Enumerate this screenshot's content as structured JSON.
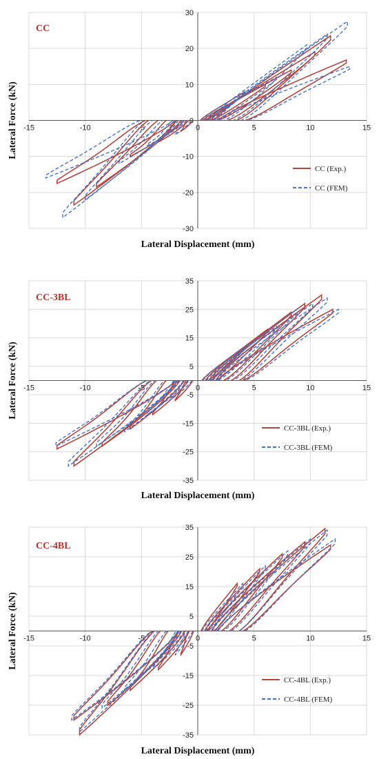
{
  "chart_data": [
    {
      "type": "line",
      "panel_label": "CC",
      "xlabel": "Lateral Displacement (mm)",
      "ylabel": "Lateral Force (kN)",
      "xlim": [
        -15,
        15
      ],
      "ylim": [
        -30,
        30
      ],
      "xticks": [
        -15,
        -10,
        -5,
        0,
        5,
        10,
        15
      ],
      "yticks": [
        -30,
        -20,
        -10,
        0,
        10,
        20,
        30
      ],
      "grid": true,
      "legend_position": "bottom-right",
      "series": [
        {
          "name": "CC (Exp.)",
          "color": "#b5443c",
          "dash": "solid",
          "cycles": [
            {
              "x": [
                1.5,
                4.2
              ],
              "y": [
                4.0,
                8.0
              ]
            },
            {
              "x": [
                3.0,
                6.0
              ],
              "y": [
                6.0,
                10.0
              ]
            },
            {
              "x": [
                5.0,
                8.3
              ],
              "y": [
                8.0,
                14.0
              ]
            },
            {
              "x": [
                7.5,
                10.4
              ],
              "y": [
                12.0,
                19.0
              ]
            },
            {
              "x": [
                9.8,
                11.8
              ],
              "y": [
                16.0,
                23.5
              ]
            },
            {
              "x": [
                12.0,
                13.2
              ],
              "y": [
                13.0,
                16.8
              ]
            },
            {
              "x": [
                -3.0,
                -1.5
              ],
              "y": [
                -6.0,
                -3.0
              ]
            },
            {
              "x": [
                -5.5,
                -3.5
              ],
              "y": [
                -9.0,
                -6.0
              ]
            },
            {
              "x": [
                -8.0,
                -6.0
              ],
              "y": [
                -13.0,
                -10.0
              ]
            },
            {
              "x": [
                -10.0,
                -9.0
              ],
              "y": [
                -16.0,
                -18.5
              ]
            },
            {
              "x": [
                -12.5,
                -11.0
              ],
              "y": [
                -21.0,
                -23.5
              ]
            },
            {
              "x": [
                -13.3,
                -12.5
              ],
              "y": [
                -17.0,
                -17.5
              ]
            }
          ]
        },
        {
          "name": "CC (FEM)",
          "color": "#4472c4",
          "dash": "dashed",
          "cycles": [
            {
              "x": [
                2.0,
                4.5
              ],
              "y": [
                5.0,
                8.5
              ]
            },
            {
              "x": [
                4.0,
                7.0
              ],
              "y": [
                7.0,
                12.0
              ]
            },
            {
              "x": [
                6.5,
                9.7
              ],
              "y": [
                11.0,
                21.0
              ]
            },
            {
              "x": [
                9.0,
                11.5
              ],
              "y": [
                15.0,
                24.0
              ]
            },
            {
              "x": [
                11.0,
                13.3
              ],
              "y": [
                20.0,
                27.5
              ]
            },
            {
              "x": [
                12.5,
                13.5
              ],
              "y": [
                13.0,
                15.0
              ]
            },
            {
              "x": [
                -4.0,
                -2.0
              ],
              "y": [
                -7.0,
                -4.0
              ]
            },
            {
              "x": [
                -6.5,
                -4.5
              ],
              "y": [
                -10.0,
                -7.0
              ]
            },
            {
              "x": [
                -9.0,
                -7.0
              ],
              "y": [
                -14.0,
                -12.0
              ]
            },
            {
              "x": [
                -11.5,
                -10.0
              ],
              "y": [
                -19.0,
                -22.0
              ]
            },
            {
              "x": [
                -13.5,
                -12.0
              ],
              "y": [
                -24.0,
                -27.0
              ]
            },
            {
              "x": [
                -14.5,
                -13.5
              ],
              "y": [
                -14.0,
                -16.0
              ]
            }
          ]
        }
      ]
    },
    {
      "type": "line",
      "panel_label": "CC-3BL",
      "xlabel": "Lateral Displacement (mm)",
      "ylabel": "Lateral Force (kN)",
      "xlim": [
        -15,
        15
      ],
      "ylim": [
        -35,
        35
      ],
      "xticks": [
        -15,
        -10,
        -5,
        0,
        5,
        10,
        15
      ],
      "yticks": [
        -35,
        -25,
        -15,
        -5,
        5,
        15,
        25,
        35
      ],
      "grid": true,
      "legend_position": "bottom-right",
      "series": [
        {
          "name": "CC-3BL (Exp.)",
          "color": "#b5443c",
          "dash": "solid",
          "cycles": [
            {
              "x": [
                2.5,
                4.2
              ],
              "y": [
                8.0,
                12.0
              ]
            },
            {
              "x": [
                4.5,
                6.2
              ],
              "y": [
                12.0,
                18.0
              ]
            },
            {
              "x": [
                6.5,
                8.3
              ],
              "y": [
                17.0,
                24.0
              ]
            },
            {
              "x": [
                8.5,
                9.5
              ],
              "y": [
                22.0,
                27.0
              ]
            },
            {
              "x": [
                10.5,
                11.0
              ],
              "y": [
                26.0,
                30.0
              ]
            },
            {
              "x": [
                11.5,
                12.0
              ],
              "y": [
                22.0,
                25.0
              ]
            },
            {
              "x": [
                -3.0,
                -2.0
              ],
              "y": [
                -9.0,
                -7.0
              ]
            },
            {
              "x": [
                -5.5,
                -4.0
              ],
              "y": [
                -14.0,
                -12.0
              ]
            },
            {
              "x": [
                -8.0,
                -6.0
              ],
              "y": [
                -20.0,
                -17.0
              ]
            },
            {
              "x": [
                -10.5,
                -8.5
              ],
              "y": [
                -26.0,
                -23.0
              ]
            },
            {
              "x": [
                -11.8,
                -11.0
              ],
              "y": [
                -29.0,
                -30.0
              ]
            },
            {
              "x": [
                -13.0,
                -12.5
              ],
              "y": [
                -23.0,
                -24.0
              ]
            }
          ]
        },
        {
          "name": "CC-3BL (FEM)",
          "color": "#4472c4",
          "dash": "dashed",
          "cycles": [
            {
              "x": [
                3.0,
                4.5
              ],
              "y": [
                8.0,
                13.0
              ]
            },
            {
              "x": [
                5.0,
                7.0
              ],
              "y": [
                13.0,
                19.0
              ]
            },
            {
              "x": [
                7.0,
                8.8
              ],
              "y": [
                18.0,
                25.0
              ]
            },
            {
              "x": [
                9.0,
                10.2
              ],
              "y": [
                23.0,
                27.0
              ]
            },
            {
              "x": [
                11.0,
                11.5
              ],
              "y": [
                25.0,
                29.0
              ]
            },
            {
              "x": [
                12.0,
                12.5
              ],
              "y": [
                22.0,
                25.0
              ]
            },
            {
              "x": [
                -3.5,
                -2.5
              ],
              "y": [
                -9.0,
                -7.0
              ]
            },
            {
              "x": [
                -6.0,
                -4.5
              ],
              "y": [
                -15.0,
                -12.0
              ]
            },
            {
              "x": [
                -8.5,
                -6.5
              ],
              "y": [
                -21.0,
                -18.0
              ]
            },
            {
              "x": [
                -11.0,
                -9.0
              ],
              "y": [
                -27.0,
                -23.0
              ]
            },
            {
              "x": [
                -12.0,
                -11.5
              ],
              "y": [
                -28.0,
                -30.0
              ]
            },
            {
              "x": [
                -13.0,
                -12.6
              ],
              "y": [
                -22.0,
                -23.0
              ]
            }
          ]
        }
      ]
    },
    {
      "type": "line",
      "panel_label": "CC-4BL",
      "xlabel": "Lateral Displacement (mm)",
      "ylabel": "Lateral Force (kN)",
      "xlim": [
        -15,
        15
      ],
      "ylim": [
        -35,
        35
      ],
      "xticks": [
        -15,
        -10,
        -5,
        0,
        5,
        10,
        15
      ],
      "yticks": [
        -35,
        -25,
        -15,
        -5,
        5,
        15,
        25,
        35
      ],
      "grid": true,
      "legend_position": "bottom-right",
      "series": [
        {
          "name": "CC-4BL (Exp.)",
          "color": "#b5443c",
          "dash": "solid",
          "cycles": [
            {
              "x": [
                2.0,
                3.5
              ],
              "y": [
                10.0,
                16.0
              ]
            },
            {
              "x": [
                4.0,
                5.5
              ],
              "y": [
                15.0,
                21.0
              ]
            },
            {
              "x": [
                6.0,
                7.5
              ],
              "y": [
                20.0,
                26.0
              ]
            },
            {
              "x": [
                8.0,
                9.5
              ],
              "y": [
                25.0,
                30.0
              ]
            },
            {
              "x": [
                10.5,
                11.3
              ],
              "y": [
                30.0,
                34.5
              ]
            },
            {
              "x": [
                11.5,
                11.8
              ],
              "y": [
                26.0,
                29.0
              ]
            },
            {
              "x": [
                -2.5,
                -1.5
              ],
              "y": [
                -10.0,
                -8.0
              ]
            },
            {
              "x": [
                -5.0,
                -3.5
              ],
              "y": [
                -16.0,
                -13.0
              ]
            },
            {
              "x": [
                -7.5,
                -6.0
              ],
              "y": [
                -23.0,
                -20.0
              ]
            },
            {
              "x": [
                -9.5,
                -8.0
              ],
              "y": [
                -28.0,
                -25.0
              ]
            },
            {
              "x": [
                -11.0,
                -10.5
              ],
              "y": [
                -33.0,
                -35.0
              ]
            },
            {
              "x": [
                -11.5,
                -11.0
              ],
              "y": [
                -29.0,
                -30.0
              ]
            }
          ]
        },
        {
          "name": "CC-4BL (FEM)",
          "color": "#4472c4",
          "dash": "dashed",
          "cycles": [
            {
              "x": [
                2.5,
                4.0
              ],
              "y": [
                10.0,
                16.0
              ]
            },
            {
              "x": [
                4.5,
                6.0
              ],
              "y": [
                15.0,
                22.0
              ]
            },
            {
              "x": [
                6.5,
                8.0
              ],
              "y": [
                21.0,
                27.0
              ]
            },
            {
              "x": [
                8.5,
                10.0
              ],
              "y": [
                26.0,
                31.0
              ]
            },
            {
              "x": [
                10.5,
                11.5
              ],
              "y": [
                30.0,
                34.0
              ]
            },
            {
              "x": [
                12.0,
                12.2
              ],
              "y": [
                28.0,
                31.0
              ]
            },
            {
              "x": [
                -3.0,
                -2.0
              ],
              "y": [
                -10.0,
                -8.0
              ]
            },
            {
              "x": [
                -5.5,
                -4.0
              ],
              "y": [
                -16.0,
                -13.0
              ]
            },
            {
              "x": [
                -8.0,
                -6.5
              ],
              "y": [
                -23.0,
                -20.0
              ]
            },
            {
              "x": [
                -10.0,
                -8.5
              ],
              "y": [
                -29.0,
                -26.0
              ]
            },
            {
              "x": [
                -11.2,
                -10.5
              ],
              "y": [
                -33.0,
                -34.0
              ]
            },
            {
              "x": [
                -11.7,
                -11.2
              ],
              "y": [
                -29.0,
                -30.0
              ]
            }
          ]
        }
      ]
    }
  ]
}
